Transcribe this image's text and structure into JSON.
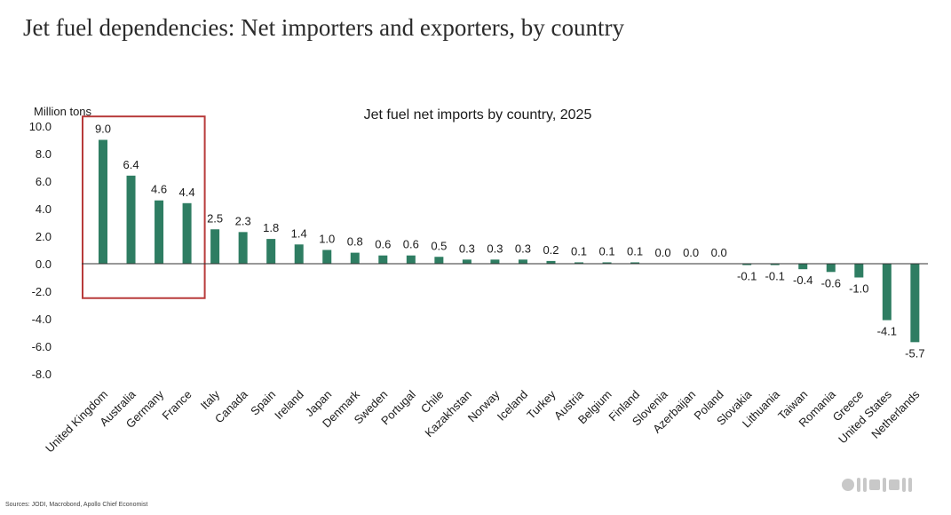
{
  "page": {
    "title": "Jet fuel dependencies: Net importers and exporters, by country",
    "source": "Sources: JODI, Macrobond, Apollo Chief Economist"
  },
  "colors": {
    "bar": "#2e7d62",
    "highlight_box": "#b83b3b",
    "axis": "#333333",
    "text": "#1a1a1a"
  },
  "chart_data": {
    "type": "bar",
    "title": "Jet fuel net imports by country, 2025",
    "ylabel": "Million tons",
    "xlabel": "",
    "ylim": [
      -8.0,
      10.0
    ],
    "yticks": [
      "10.0",
      "8.0",
      "6.0",
      "4.0",
      "2.0",
      "0.0",
      "-2.0",
      "-4.0",
      "-6.0",
      "-8.0"
    ],
    "grid": false,
    "categories": [
      "United Kingdom",
      "Australia",
      "Germany",
      "France",
      "Italy",
      "Canada",
      "Spain",
      "Ireland",
      "Japan",
      "Denmark",
      "Sweden",
      "Portugal",
      "Chile",
      "Kazakhstan",
      "Norway",
      "Iceland",
      "Turkey",
      "Austria",
      "Belgium",
      "Finland",
      "Slovenia",
      "Azerbaijan",
      "Poland",
      "Slovakia",
      "Lithuania",
      "Taiwan",
      "Romania",
      "Greece",
      "United States",
      "Netherlands"
    ],
    "values": [
      9.0,
      6.4,
      4.6,
      4.4,
      2.5,
      2.3,
      1.8,
      1.4,
      1.0,
      0.8,
      0.6,
      0.6,
      0.5,
      0.3,
      0.3,
      0.3,
      0.2,
      0.1,
      0.1,
      0.1,
      0.0,
      0.0,
      0.0,
      -0.1,
      -0.1,
      -0.4,
      -0.6,
      -1.0,
      -4.1,
      -5.7
    ],
    "value_labels": [
      "9.0",
      "6.4",
      "4.6",
      "4.4",
      "2.5",
      "2.3",
      "1.8",
      "1.4",
      "1.0",
      "0.8",
      "0.6",
      "0.6",
      "0.5",
      "0.3",
      "0.3",
      "0.3",
      "0.2",
      "0.1",
      "0.1",
      "0.1",
      "0.0",
      "0.0",
      "0.0",
      "-0.1",
      "-0.1",
      "-0.4",
      "-0.6",
      "-1.0",
      "-4.1",
      "-5.7"
    ],
    "highlight": {
      "categories": [
        "United Kingdom",
        "Australia",
        "Germany",
        "France"
      ],
      "range": [
        -2.5,
        10.7
      ]
    }
  }
}
